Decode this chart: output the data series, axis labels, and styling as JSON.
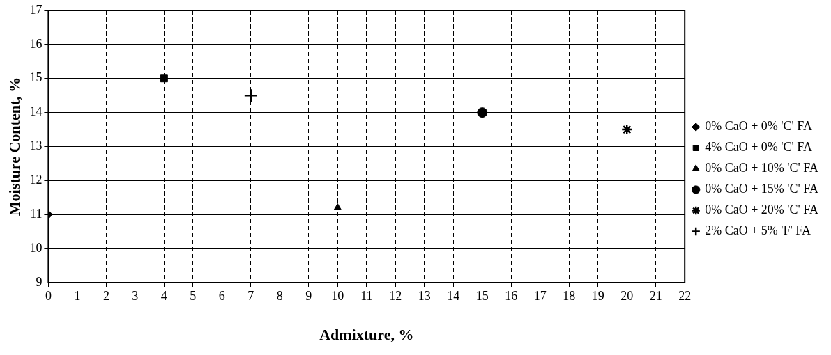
{
  "chart_data": {
    "type": "scatter",
    "xlabel": "Admixture, %",
    "ylabel": "Moisture Content, %",
    "xlim": [
      0,
      22
    ],
    "xticks": [
      0,
      1,
      2,
      3,
      4,
      5,
      6,
      7,
      8,
      9,
      10,
      11,
      12,
      13,
      14,
      15,
      16,
      17,
      18,
      19,
      20,
      21,
      22
    ],
    "ylim": [
      9,
      17
    ],
    "yticks": [
      9,
      10,
      11,
      12,
      13,
      14,
      15,
      16,
      17
    ],
    "grid": true,
    "legend": "right",
    "series": [
      {
        "name": "0% CaO + 0% 'C' FA",
        "color": "#000000",
        "marker": "diamond",
        "x": [
          0
        ],
        "values": [
          11
        ]
      },
      {
        "name": "4% CaO + 0% 'C' FA",
        "color": "#000000",
        "marker": "square",
        "x": [
          4
        ],
        "values": [
          15
        ]
      },
      {
        "name": "0% CaO + 10% 'C' FA",
        "color": "#000000",
        "marker": "triangle",
        "x": [
          10
        ],
        "values": [
          11.2
        ]
      },
      {
        "name": "0% CaO + 15% 'C' FA",
        "color": "#000000",
        "marker": "circle",
        "x": [
          15
        ],
        "values": [
          14
        ]
      },
      {
        "name": "0% CaO + 20% 'C' FA",
        "color": "#000000",
        "x": [
          20
        ],
        "values": [
          13.5
        ]
      },
      {
        "name": "2% CaO + 5% 'F' FA",
        "color": "#000000",
        "marker": "cross",
        "x": [
          7
        ],
        "values": [
          14.5
        ]
      }
    ]
  }
}
